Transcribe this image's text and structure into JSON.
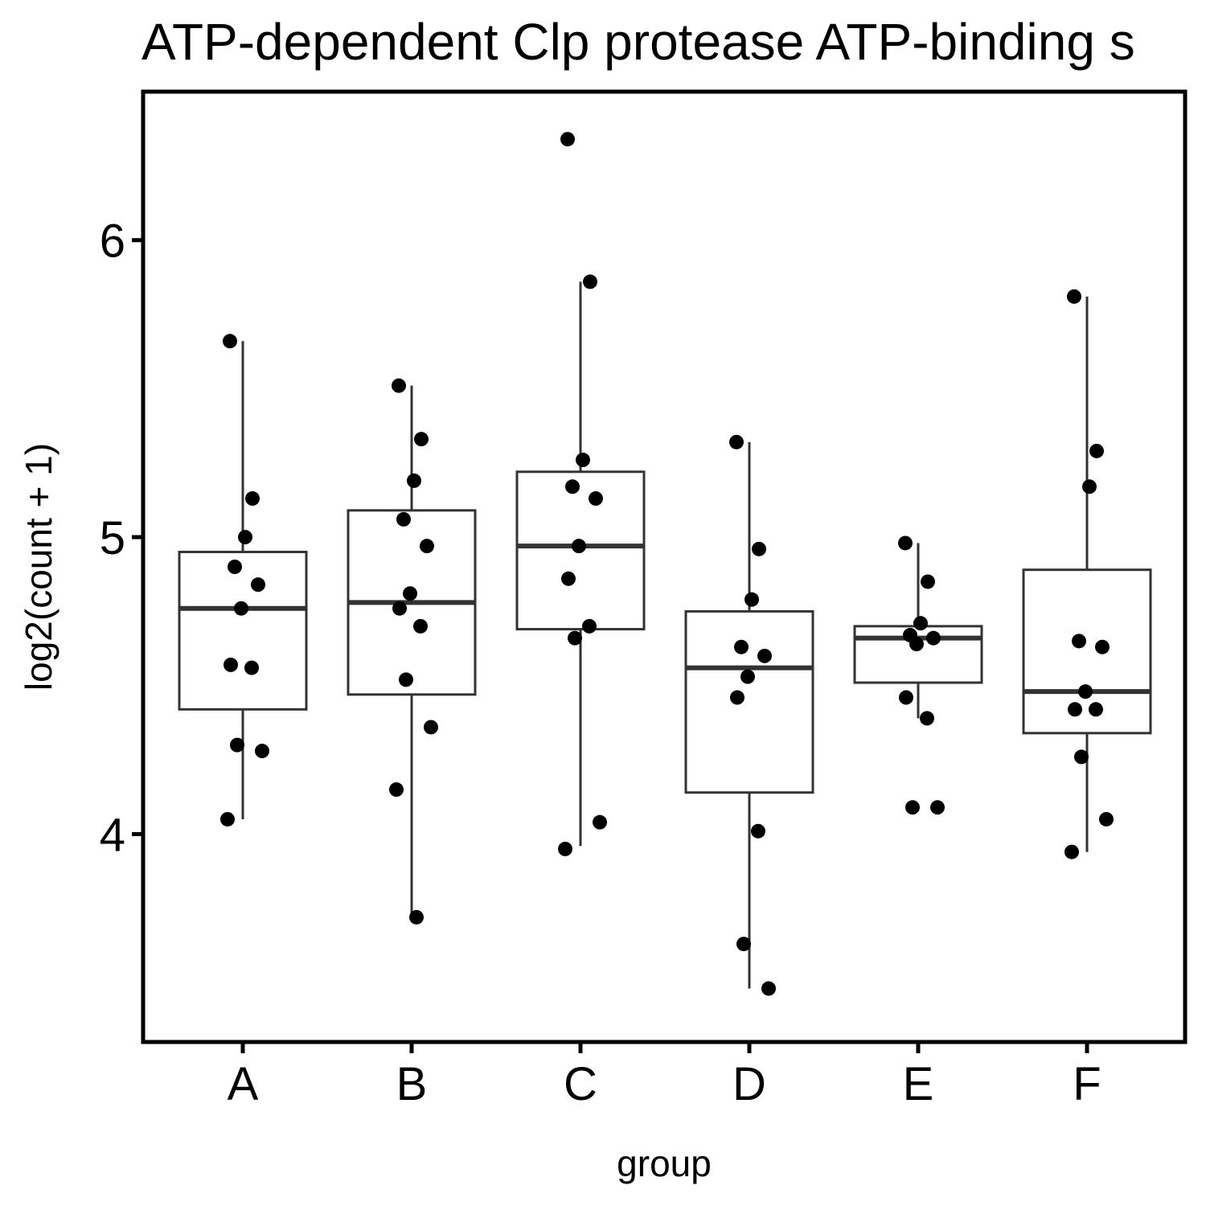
{
  "chart_data": {
    "type": "box",
    "title": "ATP-dependent Clp protease ATP-binding s",
    "xlabel": "group",
    "ylabel": "log2(count + 1)",
    "ylim": [
      3.3,
      6.5
    ],
    "yticks": [
      4,
      5,
      6
    ],
    "grid": false,
    "legend": "none",
    "categories": [
      "A",
      "B",
      "C",
      "D",
      "E",
      "F"
    ],
    "boxes": [
      {
        "group": "A",
        "whisker_low": 4.05,
        "q1": 4.42,
        "median": 4.76,
        "q3": 4.95,
        "whisker_high": 5.66
      },
      {
        "group": "B",
        "whisker_low": 3.72,
        "q1": 4.47,
        "median": 4.78,
        "q3": 5.09,
        "whisker_high": 5.51
      },
      {
        "group": "C",
        "whisker_low": 3.96,
        "q1": 4.69,
        "median": 4.97,
        "q3": 5.22,
        "whisker_high": 5.86
      },
      {
        "group": "D",
        "whisker_low": 3.48,
        "q1": 4.14,
        "median": 4.56,
        "q3": 4.75,
        "whisker_high": 5.32
      },
      {
        "group": "E",
        "whisker_low": 4.39,
        "q1": 4.51,
        "median": 4.66,
        "q3": 4.7,
        "whisker_high": 4.98
      },
      {
        "group": "F",
        "whisker_low": 3.94,
        "q1": 4.34,
        "median": 4.48,
        "q3": 4.89,
        "whisker_high": 5.81
      }
    ],
    "points": [
      {
        "group": "A",
        "values": [
          5.66,
          5.13,
          5.0,
          4.9,
          4.84,
          4.76,
          4.57,
          4.56,
          4.3,
          4.28,
          4.05
        ]
      },
      {
        "group": "B",
        "values": [
          5.51,
          5.33,
          5.19,
          5.06,
          4.97,
          4.81,
          4.76,
          4.7,
          4.52,
          4.36,
          4.15,
          3.72
        ]
      },
      {
        "group": "C",
        "values": [
          6.34,
          5.86,
          5.26,
          5.17,
          5.13,
          4.97,
          4.86,
          4.7,
          4.66,
          4.04,
          3.95
        ]
      },
      {
        "group": "D",
        "values": [
          5.32,
          4.96,
          4.79,
          4.63,
          4.6,
          4.53,
          4.46,
          4.01,
          3.63,
          3.48
        ]
      },
      {
        "group": "E",
        "values": [
          4.98,
          4.85,
          4.71,
          4.67,
          4.66,
          4.64,
          4.46,
          4.39,
          4.09,
          4.09
        ]
      },
      {
        "group": "F",
        "values": [
          5.81,
          5.29,
          5.17,
          4.65,
          4.63,
          4.48,
          4.42,
          4.42,
          4.26,
          4.05,
          3.94
        ]
      }
    ]
  }
}
